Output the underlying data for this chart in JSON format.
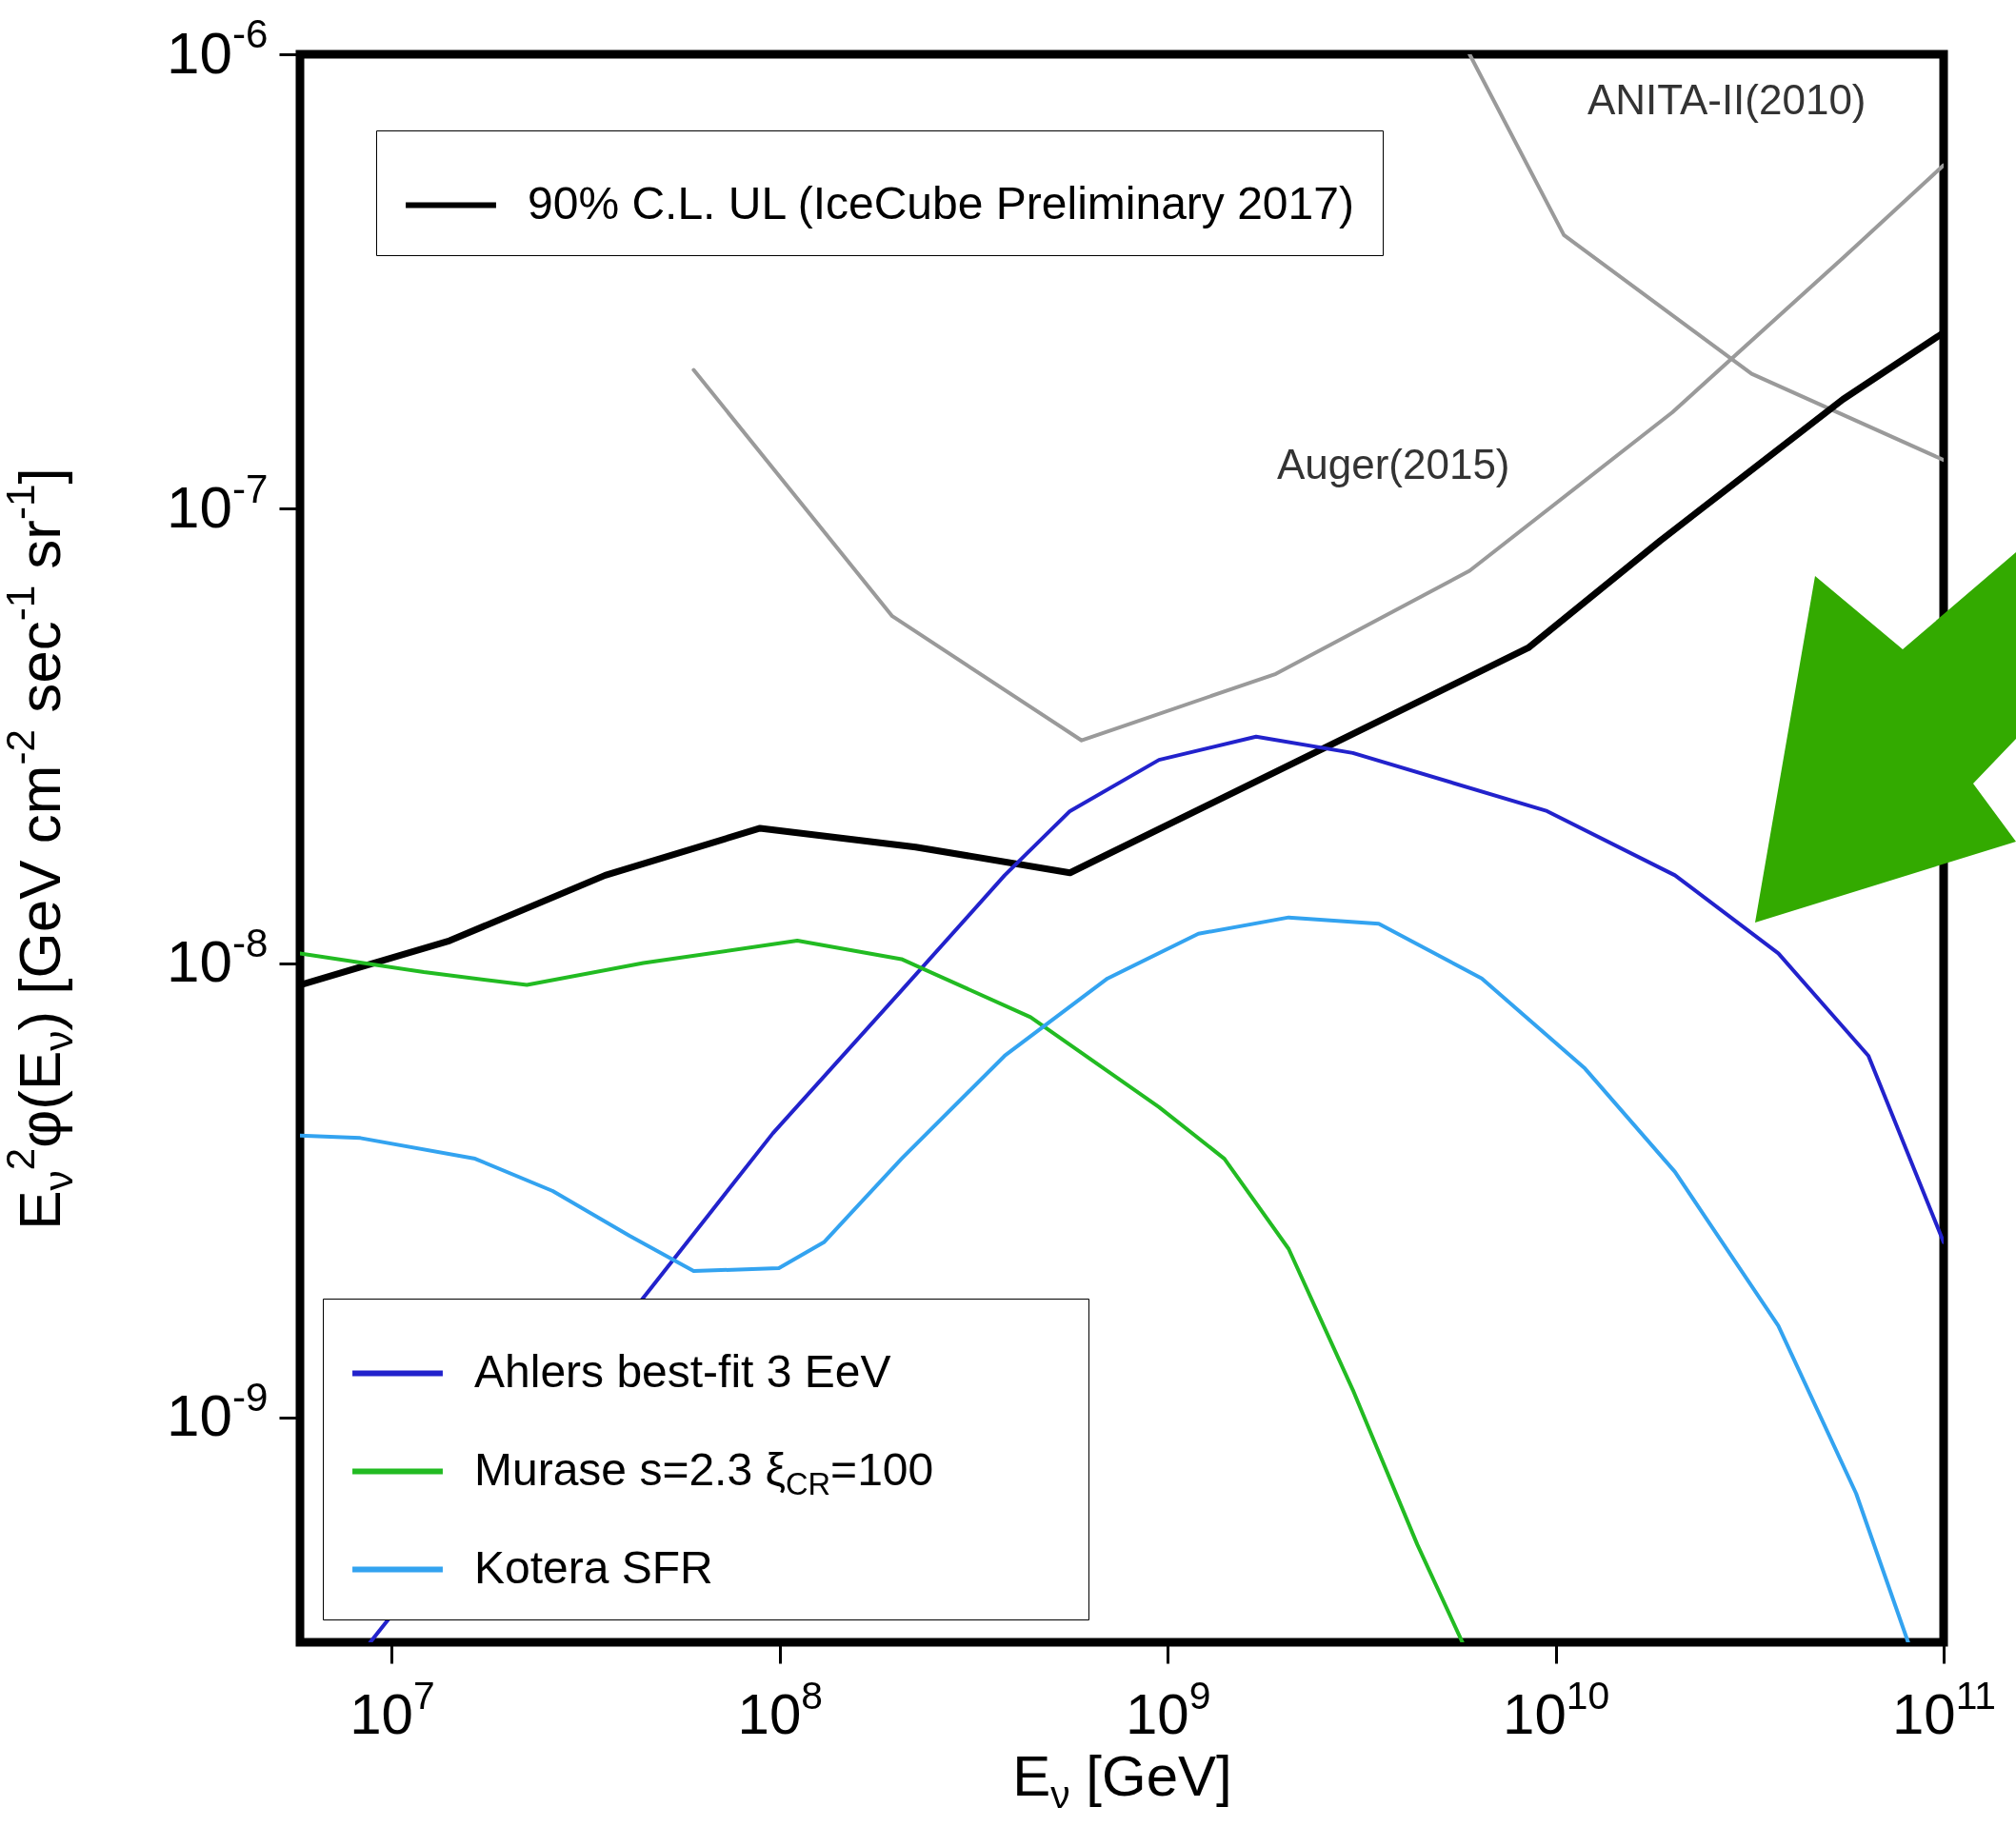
{
  "chart_data": {
    "type": "line",
    "xlabel": "E$_{ν}$ [GeV]",
    "ylabel": "E$_{ν}$$^{2}$φ(E$_{ν}$) [GeV cm$^{-2}$ sec$^{-1}$ sr$^{-1}$]",
    "log": "xy",
    "grid": false,
    "legend": "bottom left",
    "xlim": [
      5800000.0,
      100000000000.0
    ],
    "ylim": [
      3.2e-10,
      1e-06
    ],
    "xticks": [
      {
        "value": 10000000.0,
        "label": "10$^{7}$"
      },
      {
        "value": 100000000.0,
        "label": "10$^{8}$"
      },
      {
        "value": 1000000000.0,
        "label": "10$^{9}$"
      },
      {
        "value": 10000000000.0,
        "label": "10$^{10}$"
      },
      {
        "value": 100000000000.0,
        "label": "10$^{11}$"
      }
    ],
    "yticks": [
      {
        "value": 1e-09,
        "label": "10$^{-9}$"
      },
      {
        "value": 1e-08,
        "label": "10$^{-8}$"
      },
      {
        "value": 1e-07,
        "label": "10$^{-7}$"
      },
      {
        "value": 1e-06,
        "label": "10$^{-6}$"
      }
    ],
    "series": [
      {
        "name": "90% C.L. UL (IceCube Preliminary 2017)",
        "color": "#000000",
        "x": [
          5800000.0,
          14100000.0,
          35500000.0,
          89000000.0,
          224000000.0,
          560000000.0,
          8500000000.0,
          18600000000.0,
          55000000000.0,
          100000000000.0
        ],
        "values": [
          8.95e-09,
          1.12e-08,
          1.56e-08,
          1.98e-08,
          1.8e-08,
          1.58e-08,
          4.94e-08,
          8.5e-08,
          1.74e-07,
          2.44e-07
        ]
      },
      {
        "name": "Auger(2015)",
        "color": "#9a9a9a",
        "x": [
          60000000.0,
          195000000.0,
          600000000.0,
          1900000000.0,
          6000000000.0,
          20000000000.0,
          55000000000.0,
          100000000000.0
        ],
        "values": [
          2.02e-07,
          5.8e-08,
          3.09e-08,
          4.33e-08,
          7.3e-08,
          1.63e-07,
          3.56e-07,
          5.7e-07
        ]
      },
      {
        "name": "ANITA-II(2010)",
        "color": "#9a9a9a",
        "x": [
          6000000000.0,
          10500000000.0,
          32000000000.0,
          100000000000.0
        ],
        "values": [
          1e-06,
          4e-07,
          1.98e-07,
          1.28e-07
        ]
      },
      {
        "name": "Ahlers best-fit 3 EeV",
        "color": "#2222cc",
        "x": [
          8800000.0,
          46000000.0,
          96000000.0,
          206000000.0,
          380000000.0,
          560000000.0,
          950000000.0,
          1690000000.0,
          3000000000.0,
          9500000000.0,
          20300000000.0,
          37500000000.0,
          64000000000.0,
          100000000000.0
        ],
        "values": [
          3.2e-10,
          1.9e-09,
          4.22e-09,
          8.7e-09,
          1.56e-08,
          2.16e-08,
          2.8e-08,
          3.15e-08,
          2.9e-08,
          2.16e-08,
          1.56e-08,
          1.05e-08,
          6.25e-09,
          2.43e-09
        ]
      },
      {
        "name": "Murase s=2.3 ξ$_{CR}$=100",
        "color": "#22bb22",
        "x": [
          5800000.0,
          12100000.0,
          22300000.0,
          44500000.0,
          111000000.0,
          206000000.0,
          443000000.0,
          950000000.0,
          1400000000.0,
          2050000000.0,
          3000000000.0,
          4400000000.0,
          5750000000.0
        ],
        "values": [
          1.05e-08,
          9.55e-09,
          8.95e-09,
          1e-08,
          1.12e-08,
          1.02e-08,
          7.6e-09,
          4.82e-09,
          3.71e-09,
          2.35e-09,
          1.15e-09,
          5.25e-10,
          3.2e-10
        ]
      },
      {
        "name": "Kotera SFR",
        "color": "#33a3f0",
        "x": [
          5800000.0,
          8300000.0,
          16400000.0,
          26000000.0,
          41000000.0,
          60000000.0,
          99500000.0,
          130000000.0,
          206000000.0,
          380000000.0,
          700000000.0,
          1200000000.0,
          2050000000.0,
          3500000000.0,
          6450000000.0,
          11900000000.0,
          20300000000.0,
          37500000000.0,
          59500000000.0,
          81000000000.0
        ],
        "values": [
          4.17e-09,
          4.12e-09,
          3.71e-09,
          3.15e-09,
          2.51e-09,
          2.1e-09,
          2.13e-09,
          2.43e-09,
          3.71e-09,
          6.25e-09,
          9.25e-09,
          1.16e-08,
          1.26e-08,
          1.22e-08,
          9.25e-09,
          5.86e-09,
          3.47e-09,
          1.59e-09,
          6.8e-10,
          3.2e-10
        ]
      }
    ]
  }
}
